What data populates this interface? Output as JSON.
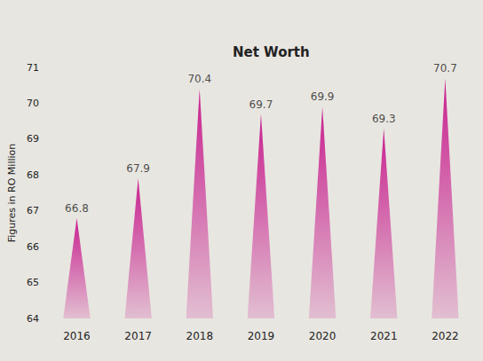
{
  "chart_data": {
    "type": "bar",
    "title": "Net Worth",
    "y_label": "Figures in RO Million",
    "categories": [
      "2016",
      "2017",
      "2018",
      "2019",
      "2020",
      "2021",
      "2022"
    ],
    "values": [
      66.8,
      67.9,
      70.4,
      69.7,
      69.9,
      69.3,
      70.7
    ],
    "color": "#c8218f",
    "ylim": [
      64,
      71
    ],
    "yticks": [
      64,
      65,
      66,
      67,
      68,
      69,
      70,
      71
    ],
    "grid": false,
    "data_labels": true
  }
}
